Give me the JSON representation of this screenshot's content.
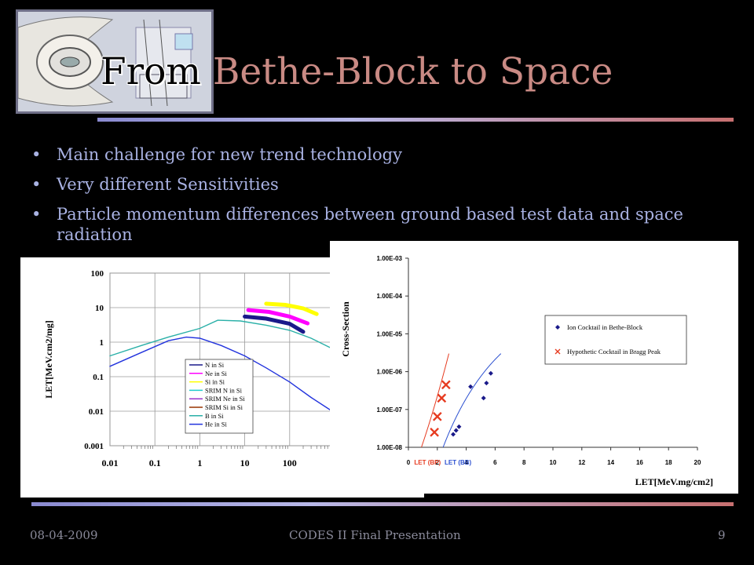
{
  "slide": {
    "title_part1": "From ",
    "title_part2": "Bethe-Block to Space",
    "bullets": [
      "Main challenge for new trend technology",
      "Very different Sensitivities",
      "Particle momentum differences between ground based test data and space radiation"
    ]
  },
  "footer": {
    "date": "08-04-2009",
    "title": "CODES II Final Presentation",
    "page": "9"
  },
  "chart_data": [
    {
      "type": "line",
      "xscale": "log",
      "yscale": "log",
      "ylabel": "LET[MeV.cm2/mg]",
      "xlabel": "",
      "xlim": [
        0.01,
        1000
      ],
      "ylim": [
        0.001,
        100
      ],
      "x_ticks": [
        "0.01",
        "0.1",
        "1",
        "10",
        "100"
      ],
      "y_ticks": [
        "100",
        "10",
        "1",
        "0.1",
        "0.01",
        "0.001"
      ],
      "legend": [
        "N in Si",
        "Ne in Si",
        "Si in Si",
        "SRIM N in Si",
        "SRIM Ne in Si",
        "SRIM Si in Si",
        "B in Si",
        "He in Si"
      ],
      "legend_position": "bottom-right",
      "grid": true,
      "series": [
        {
          "name": "N in Si",
          "x": [
            10,
            30,
            100,
            200
          ],
          "y": [
            5.5,
            4.8,
            3.4,
            2.0
          ],
          "color": "#1a1a8a"
        },
        {
          "name": "Ne in Si",
          "x": [
            12,
            35,
            100,
            250
          ],
          "y": [
            8.5,
            7.5,
            5.5,
            3.5
          ],
          "color": "#ff00ff"
        },
        {
          "name": "Si in Si",
          "x": [
            30,
            80,
            200,
            400
          ],
          "y": [
            13,
            12,
            9.5,
            6.5
          ],
          "color": "#ffff00"
        },
        {
          "name": "B in Si",
          "x": [
            0.01,
            0.05,
            0.2,
            1,
            2.5,
            8,
            30,
            100,
            300,
            1000
          ],
          "y": [
            0.4,
            0.8,
            1.4,
            2.5,
            4.3,
            4.1,
            3.1,
            2.2,
            1.3,
            0.6
          ],
          "color": "#2ab0a8"
        },
        {
          "name": "He in Si",
          "x": [
            0.01,
            0.05,
            0.2,
            0.5,
            1,
            3,
            10,
            30,
            100,
            300,
            1000
          ],
          "y": [
            0.2,
            0.5,
            1.1,
            1.4,
            1.3,
            0.8,
            0.4,
            0.18,
            0.07,
            0.025,
            0.009
          ],
          "color": "#2233dd"
        }
      ]
    },
    {
      "type": "scatter",
      "yscale": "log",
      "ylabel": "Cross-Section",
      "xlabel": "LET[MeV.mg/cm2]",
      "xlim": [
        0,
        20
      ],
      "ylim": [
        1e-08,
        0.001
      ],
      "x_ticks": [
        "0",
        "2",
        "4",
        "6",
        "8",
        "10",
        "12",
        "14",
        "16",
        "18",
        "20"
      ],
      "y_ticks": [
        "1.00E-03",
        "1.00E-04",
        "1.00E-05",
        "1.00E-06",
        "1.00E-07",
        "1.00E-08"
      ],
      "annotations": [
        "LET (BP)",
        "LET (BB)"
      ],
      "legend": [
        "Ion Cocktail in Bethe-Block",
        "Hypothetic Cocktail in Bragg Peak"
      ],
      "legend_position": "right",
      "series": [
        {
          "name": "Ion Cocktail in Bethe-Block",
          "x": [
            3.1,
            3.3,
            3.5,
            4.3,
            5.2,
            5.4,
            5.7
          ],
          "y": [
            2.2e-08,
            2.8e-08,
            3.5e-08,
            4e-07,
            2e-07,
            5e-07,
            9e-07
          ],
          "color": "#1a1a8a"
        },
        {
          "name": "Hypothetic Cocktail in Bragg Peak",
          "x": [
            1.8,
            2.0,
            2.3,
            2.6
          ],
          "y": [
            2.5e-08,
            6.5e-08,
            2e-07,
            4.5e-07
          ],
          "color": "#e63b20"
        }
      ]
    }
  ]
}
